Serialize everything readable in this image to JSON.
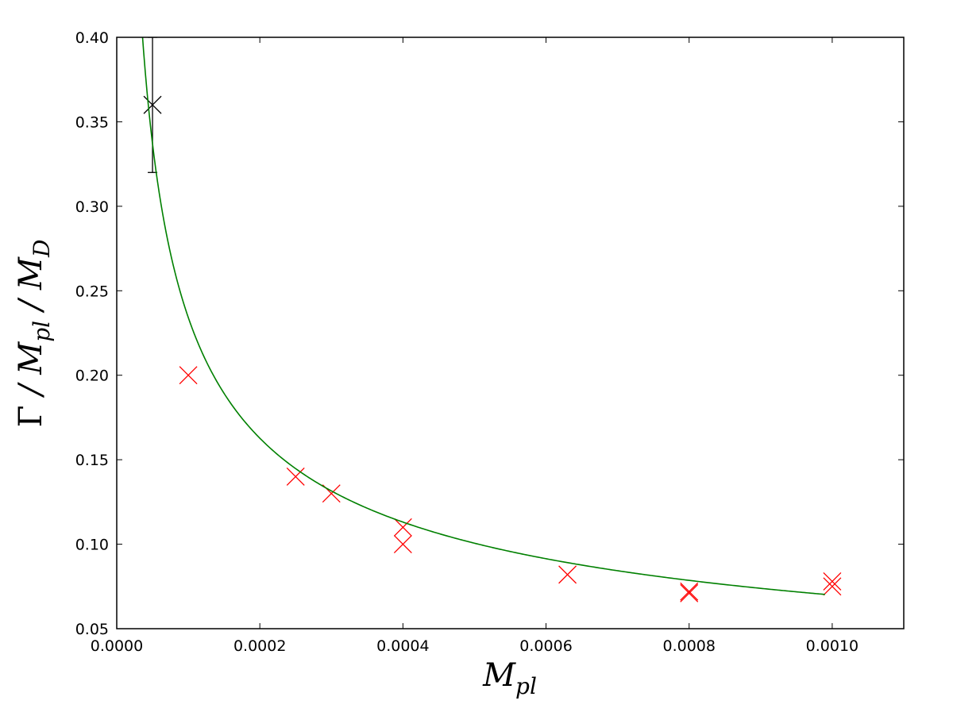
{
  "chart_data": {
    "type": "scatter",
    "title": "",
    "xlabel": "M_pl",
    "ylabel": "Γ / M_pl / M_D",
    "xlim": [
      0.0,
      0.0011
    ],
    "ylim": [
      0.05,
      0.4
    ],
    "grid": false,
    "legend": "none",
    "x_ticks": [
      0.0,
      0.0002,
      0.0004,
      0.0006,
      0.0008,
      0.001
    ],
    "x_tick_labels": [
      "0.0000",
      "0.0002",
      "0.0004",
      "0.0006",
      "0.0008",
      "0.0010"
    ],
    "y_ticks": [
      0.05,
      0.1,
      0.15,
      0.2,
      0.25,
      0.3,
      0.35,
      0.4
    ],
    "y_tick_labels": [
      "0.05",
      "0.10",
      "0.15",
      "0.20",
      "0.25",
      "0.30",
      "0.35",
      "0.40"
    ],
    "series": [
      {
        "kind": "errorbar-point",
        "color": "#000000",
        "x": [
          5e-05
        ],
        "y": [
          0.36
        ],
        "yerr_low": [
          0.32
        ],
        "yerr_high": [
          0.4
        ]
      },
      {
        "kind": "points",
        "color": "#ff0000",
        "x": [
          0.0001,
          0.00025,
          0.0003,
          0.0004,
          0.0004,
          0.00063,
          0.0008,
          0.0008,
          0.001,
          0.001
        ],
        "y": [
          0.2,
          0.14,
          0.13,
          0.11,
          0.1,
          0.082,
          0.072,
          0.071,
          0.078,
          0.075
        ]
      },
      {
        "kind": "fit-curve",
        "color": "#008000",
        "form": "y = a * x^p",
        "a": 0.00186,
        "p": -0.525,
        "x_range": [
          1.8e-05,
          0.00099
        ]
      }
    ]
  }
}
